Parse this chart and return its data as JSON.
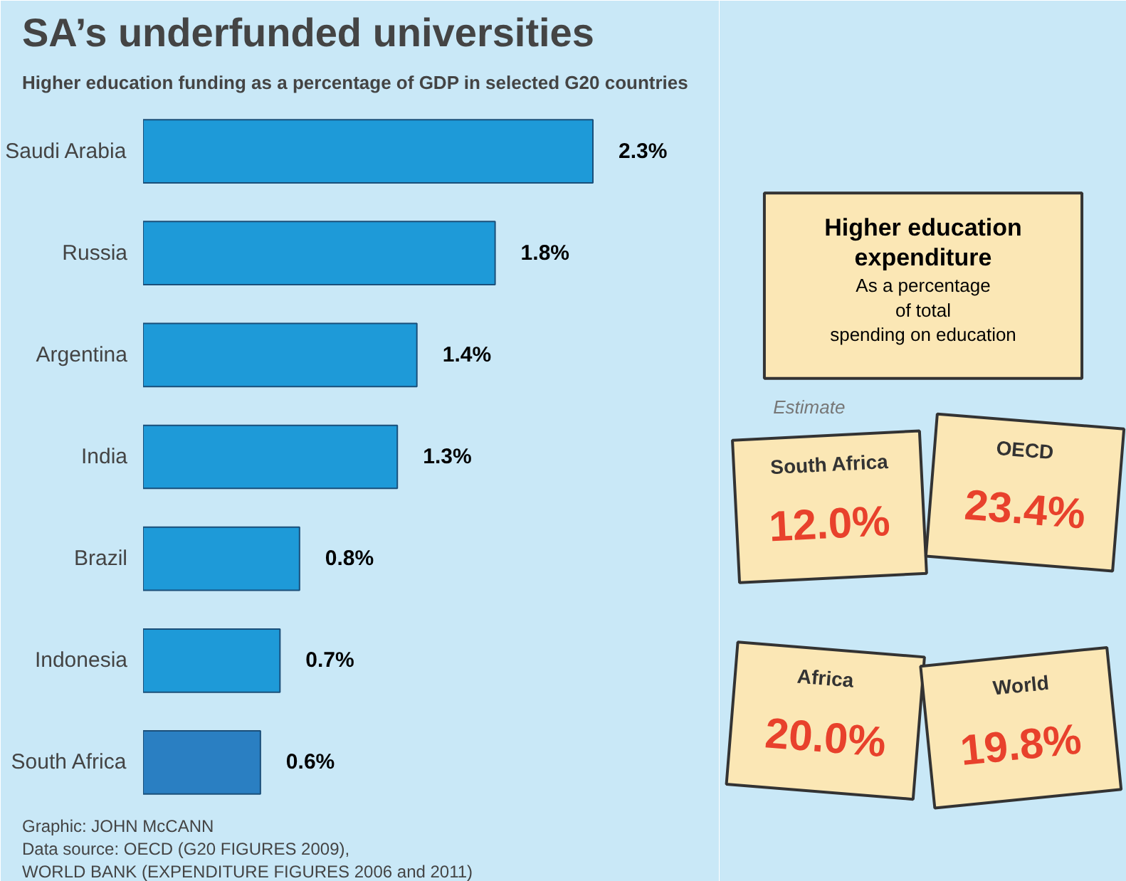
{
  "chart_data": [
    {
      "type": "bar",
      "orientation": "horizontal",
      "title": "SA’s underfunded universities",
      "subtitle": "Higher education funding as a percentage of GDP in selected G20 countries",
      "categories": [
        "Saudi Arabia",
        "Russia",
        "Argentina",
        "India",
        "Brazil",
        "Indonesia",
        "South Africa"
      ],
      "values": [
        2.3,
        1.8,
        1.4,
        1.3,
        0.8,
        0.7,
        0.6
      ],
      "value_labels": [
        "2.3%",
        "1.8%",
        "1.4%",
        "1.3%",
        "0.8%",
        "0.7%",
        "0.6%"
      ],
      "colors": [
        "#1e9ad8",
        "#1e9ad8",
        "#1e9ad8",
        "#1e9ad8",
        "#1e9ad8",
        "#1e9ad8",
        "#2a7fc2"
      ],
      "annotations": [
        "Graphic: JOHN McCANN",
        "Data source: OECD (G20 FIGURES 2009),",
        "WORLD BANK (EXPENDITURE FIGURES 2006 and 2011)"
      ]
    },
    {
      "type": "other",
      "title": "Higher education expenditure",
      "subtitle": "As a percentage of total spending on education",
      "categories": [
        "South Africa",
        "OECD",
        "Africa",
        "World"
      ],
      "value_labels": [
        "12.0%",
        "23.4%",
        "20.0%",
        "19.8%"
      ],
      "annotations": [
        "Estimate"
      ]
    }
  ]
}
